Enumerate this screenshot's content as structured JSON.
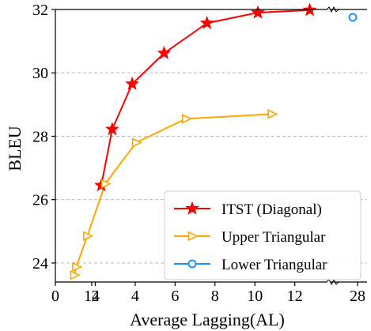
{
  "chart_data": {
    "type": "line",
    "xlabel": "Average Lagging(AL)",
    "ylabel": "BLEU",
    "xlim": [
      0,
      13.6
    ],
    "ylim": [
      23.4,
      32
    ],
    "x_break": {
      "from": 13.6,
      "to": 27.0
    },
    "x_ticks": [
      0,
      2,
      4,
      6,
      8,
      10,
      12,
      14,
      28
    ],
    "x_tick_labels": [
      "0",
      "2",
      "4",
      "6",
      "8",
      "10",
      "12",
      "14",
      "28"
    ],
    "y_ticks": [
      24,
      26,
      28,
      30,
      32
    ],
    "y_tick_labels": [
      "24",
      "26",
      "28",
      "30",
      "32"
    ],
    "grid": "horizontal dashed",
    "legend_position": "lower-right",
    "series": [
      {
        "name": "ITST (Diagonal)",
        "color": "#ff0000",
        "marker": "star",
        "x": [
          2.3,
          2.85,
          3.85,
          5.45,
          7.6,
          10.15,
          12.75
        ],
        "y": [
          26.45,
          28.22,
          29.65,
          30.62,
          31.57,
          31.9,
          31.98
        ]
      },
      {
        "name": "Upper Triangular",
        "color": "#ffa500",
        "marker": "triangle-right",
        "x": [
          0.95,
          1.05,
          1.6,
          2.5,
          4.05,
          6.55,
          10.85
        ],
        "y": [
          23.62,
          23.88,
          24.85,
          26.5,
          27.8,
          28.55,
          28.7
        ]
      },
      {
        "name": "Lower Triangular",
        "color": "#1e90ff",
        "marker": "circle-open",
        "x": [
          27.75
        ],
        "y": [
          31.75
        ]
      }
    ]
  }
}
